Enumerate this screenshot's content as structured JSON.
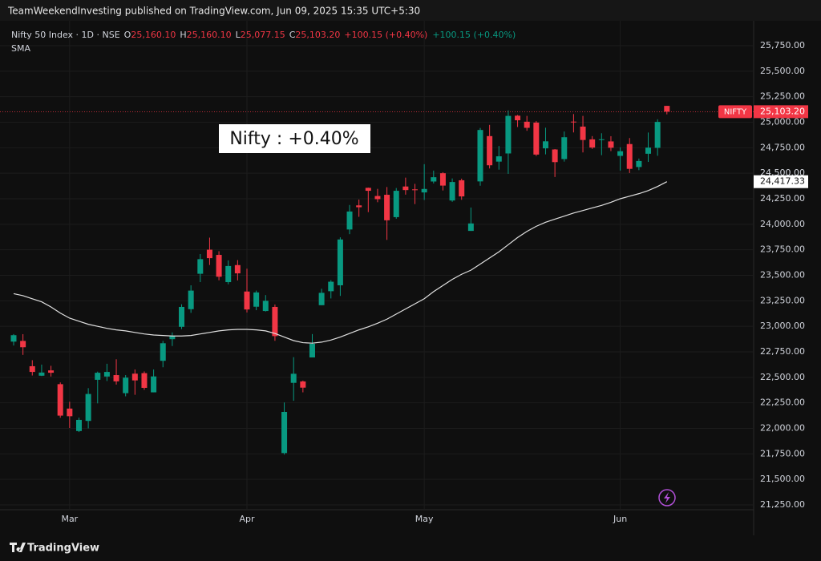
{
  "chart_data": {
    "type": "candlestick",
    "published": "TeamWeekendInvesting published on TradingView.com, Jun 09, 2025 15:35 UTC+5:30",
    "legend": {
      "symbol": "Nifty 50 Index · 1D · NSE",
      "o_key": "O",
      "o": "25,160.10",
      "h_key": "H",
      "h": "25,160.10",
      "l_key": "L",
      "l": "25,077.15",
      "c_key": "C",
      "c": "25,103.20",
      "change": "+100.15 (+0.40%)",
      "change2": "+100.15 (+0.40%)"
    },
    "annotation": "Nifty : +0.40%",
    "footer": "TradingView",
    "ticker": "NIFTY",
    "last_label": "25,103.20",
    "up_color": "#089981",
    "down_color": "#f23645",
    "categories": [
      null,
      null,
      null,
      null,
      null,
      null,
      "Mar",
      null,
      null,
      null,
      null,
      null,
      null,
      null,
      null,
      null,
      null,
      null,
      null,
      null,
      null,
      null,
      null,
      null,
      null,
      "Apr",
      null,
      null,
      null,
      null,
      null,
      null,
      null,
      null,
      null,
      null,
      null,
      null,
      null,
      null,
      null,
      null,
      null,
      null,
      "May",
      null,
      null,
      null,
      null,
      null,
      null,
      null,
      null,
      null,
      null,
      null,
      null,
      null,
      null,
      null,
      null,
      null,
      null,
      null,
      null,
      "Jun",
      null,
      null,
      null,
      null,
      null
    ],
    "open": [
      22850,
      22857,
      22609,
      22516,
      22568,
      22433,
      22194,
      21974,
      22073,
      22476,
      22508,
      22522,
      22345,
      22536,
      22541,
      22353,
      22662,
      22874,
      22995,
      23168,
      23515,
      23751,
      23700,
      23433,
      23600,
      23341,
      23192,
      23150,
      23190,
      21758,
      22446,
      22460,
      22695,
      23207,
      23344,
      23402,
      23949,
      24185,
      24357,
      24277,
      24289,
      24070,
      24370,
      24342,
      24312,
      24419,
      24500,
      24233,
      24431,
      23935,
      24420,
      24864,
      24614,
      24694,
      25064,
      25005,
      24996,
      24744,
      24733,
      24639,
      25006,
      24957,
      24832,
      24826,
      24812,
      24670,
      24786,
      24561,
      24691,
      24749,
      25160.1
    ],
    "high": [
      22924,
      22923,
      22668,
      22625,
      22613,
      22450,
      22261,
      22105,
      22394,
      22556,
      22633,
      22677,
      22522,
      22577,
      22558,
      22577,
      22857,
      22940,
      23216,
      23402,
      23708,
      23869,
      23736,
      23646,
      23649,
      23565,
      23350,
      23306,
      23214,
      22254,
      22698,
      22468,
      22924,
      23368,
      23452,
      23872,
      24189,
      24242,
      24359,
      24347,
      24365,
      24355,
      24457,
      24396,
      24589,
      24526,
      24510,
      24449,
      24447,
      24164,
      24944,
      24974,
      24767,
      25116,
      25071,
      25062,
      25011,
      24946,
      24737,
      24909,
      25080,
      25062,
      24864,
      24892,
      24863,
      24754,
      24845,
      24644,
      24899,
      25029,
      25160.1
    ],
    "low": [
      22812,
      22720,
      22518,
      22513,
      22508,
      22104,
      22004,
      21964,
      22000,
      22245,
      22464,
      22429,
      22314,
      22329,
      22378,
      22353,
      22599,
      22807,
      22973,
      23132,
      23433,
      23601,
      23451,
      23412,
      23450,
      23136,
      23158,
      23145,
      22858,
      21743,
      22270,
      22353,
      22695,
      23207,
      23273,
      23298,
      23903,
      24073,
      24119,
      24216,
      23847,
      24054,
      24290,
      24198,
      24238,
      24400,
      24331,
      24220,
      24240,
      23935,
      24378,
      24547,
      24535,
      24494,
      24953,
      24916,
      24669,
      24685,
      24463,
      24614,
      24900,
      24704,
      24738,
      24677,
      24717,
      24526,
      24502,
      24530,
      24611,
      24671,
      25077.15
    ],
    "close": [
      22913,
      22795,
      22553,
      22547,
      22545,
      22125,
      22119,
      22083,
      22337,
      22545,
      22553,
      22461,
      22497,
      22470,
      22397,
      22509,
      22834,
      22907,
      23190,
      23350,
      23658,
      23668,
      23486,
      23591,
      23519,
      23165,
      23332,
      23250,
      22904,
      22161,
      22535,
      22399,
      22829,
      23328,
      23437,
      23851,
      24125,
      24167,
      24328,
      24246,
      24039,
      24328,
      24335,
      24334,
      24346,
      24461,
      24379,
      24414,
      24273,
      24008,
      24924,
      24578,
      24666,
      25062,
      25019,
      24945,
      24683,
      24813,
      24609,
      24853,
      25001,
      24826,
      24752,
      24833,
      24750,
      24716,
      24543,
      24620,
      24751,
      25003,
      25103.2
    ],
    "sma": {
      "name": "SMA",
      "color": "#e0e0e0",
      "last_label": "24,417.33",
      "values": [
        23320,
        23300,
        23270,
        23240,
        23190,
        23130,
        23080,
        23050,
        23020,
        23000,
        22980,
        22965,
        22955,
        22940,
        22925,
        22915,
        22910,
        22905,
        22905,
        22910,
        22925,
        22940,
        22955,
        22965,
        22970,
        22970,
        22965,
        22955,
        22930,
        22895,
        22860,
        22840,
        22835,
        22845,
        22865,
        22895,
        22930,
        22965,
        22995,
        23030,
        23070,
        23120,
        23170,
        23220,
        23270,
        23340,
        23400,
        23460,
        23510,
        23550,
        23610,
        23670,
        23730,
        23800,
        23870,
        23930,
        23980,
        24020,
        24050,
        24080,
        24110,
        24135,
        24160,
        24185,
        24215,
        24250,
        24275,
        24300,
        24330,
        24370,
        24417.33
      ]
    },
    "ylim": [
      21250,
      25750
    ],
    "yticks": [
      {
        "value": 21250,
        "label": "21,250.00"
      },
      {
        "value": 21500,
        "label": "21,500.00"
      },
      {
        "value": 21750,
        "label": "21,750.00"
      },
      {
        "value": 22000,
        "label": "22,000.00"
      },
      {
        "value": 22250,
        "label": "22,250.00"
      },
      {
        "value": 22500,
        "label": "22,500.00"
      },
      {
        "value": 22750,
        "label": "22,750.00"
      },
      {
        "value": 23000,
        "label": "23,000.00"
      },
      {
        "value": 23250,
        "label": "23,250.00"
      },
      {
        "value": 23500,
        "label": "23,500.00"
      },
      {
        "value": 23750,
        "label": "23,750.00"
      },
      {
        "value": 24000,
        "label": "24,000.00"
      },
      {
        "value": 24250,
        "label": "24,250.00"
      },
      {
        "value": 24500,
        "label": "24,500.00"
      },
      {
        "value": 24750,
        "label": "24,750.00"
      },
      {
        "value": 25000,
        "label": "25,000.00"
      },
      {
        "value": 25250,
        "label": "25,250.00"
      },
      {
        "value": 25500,
        "label": "25,500.00"
      },
      {
        "value": 25750,
        "label": "25,750.00"
      }
    ],
    "grid": true
  }
}
